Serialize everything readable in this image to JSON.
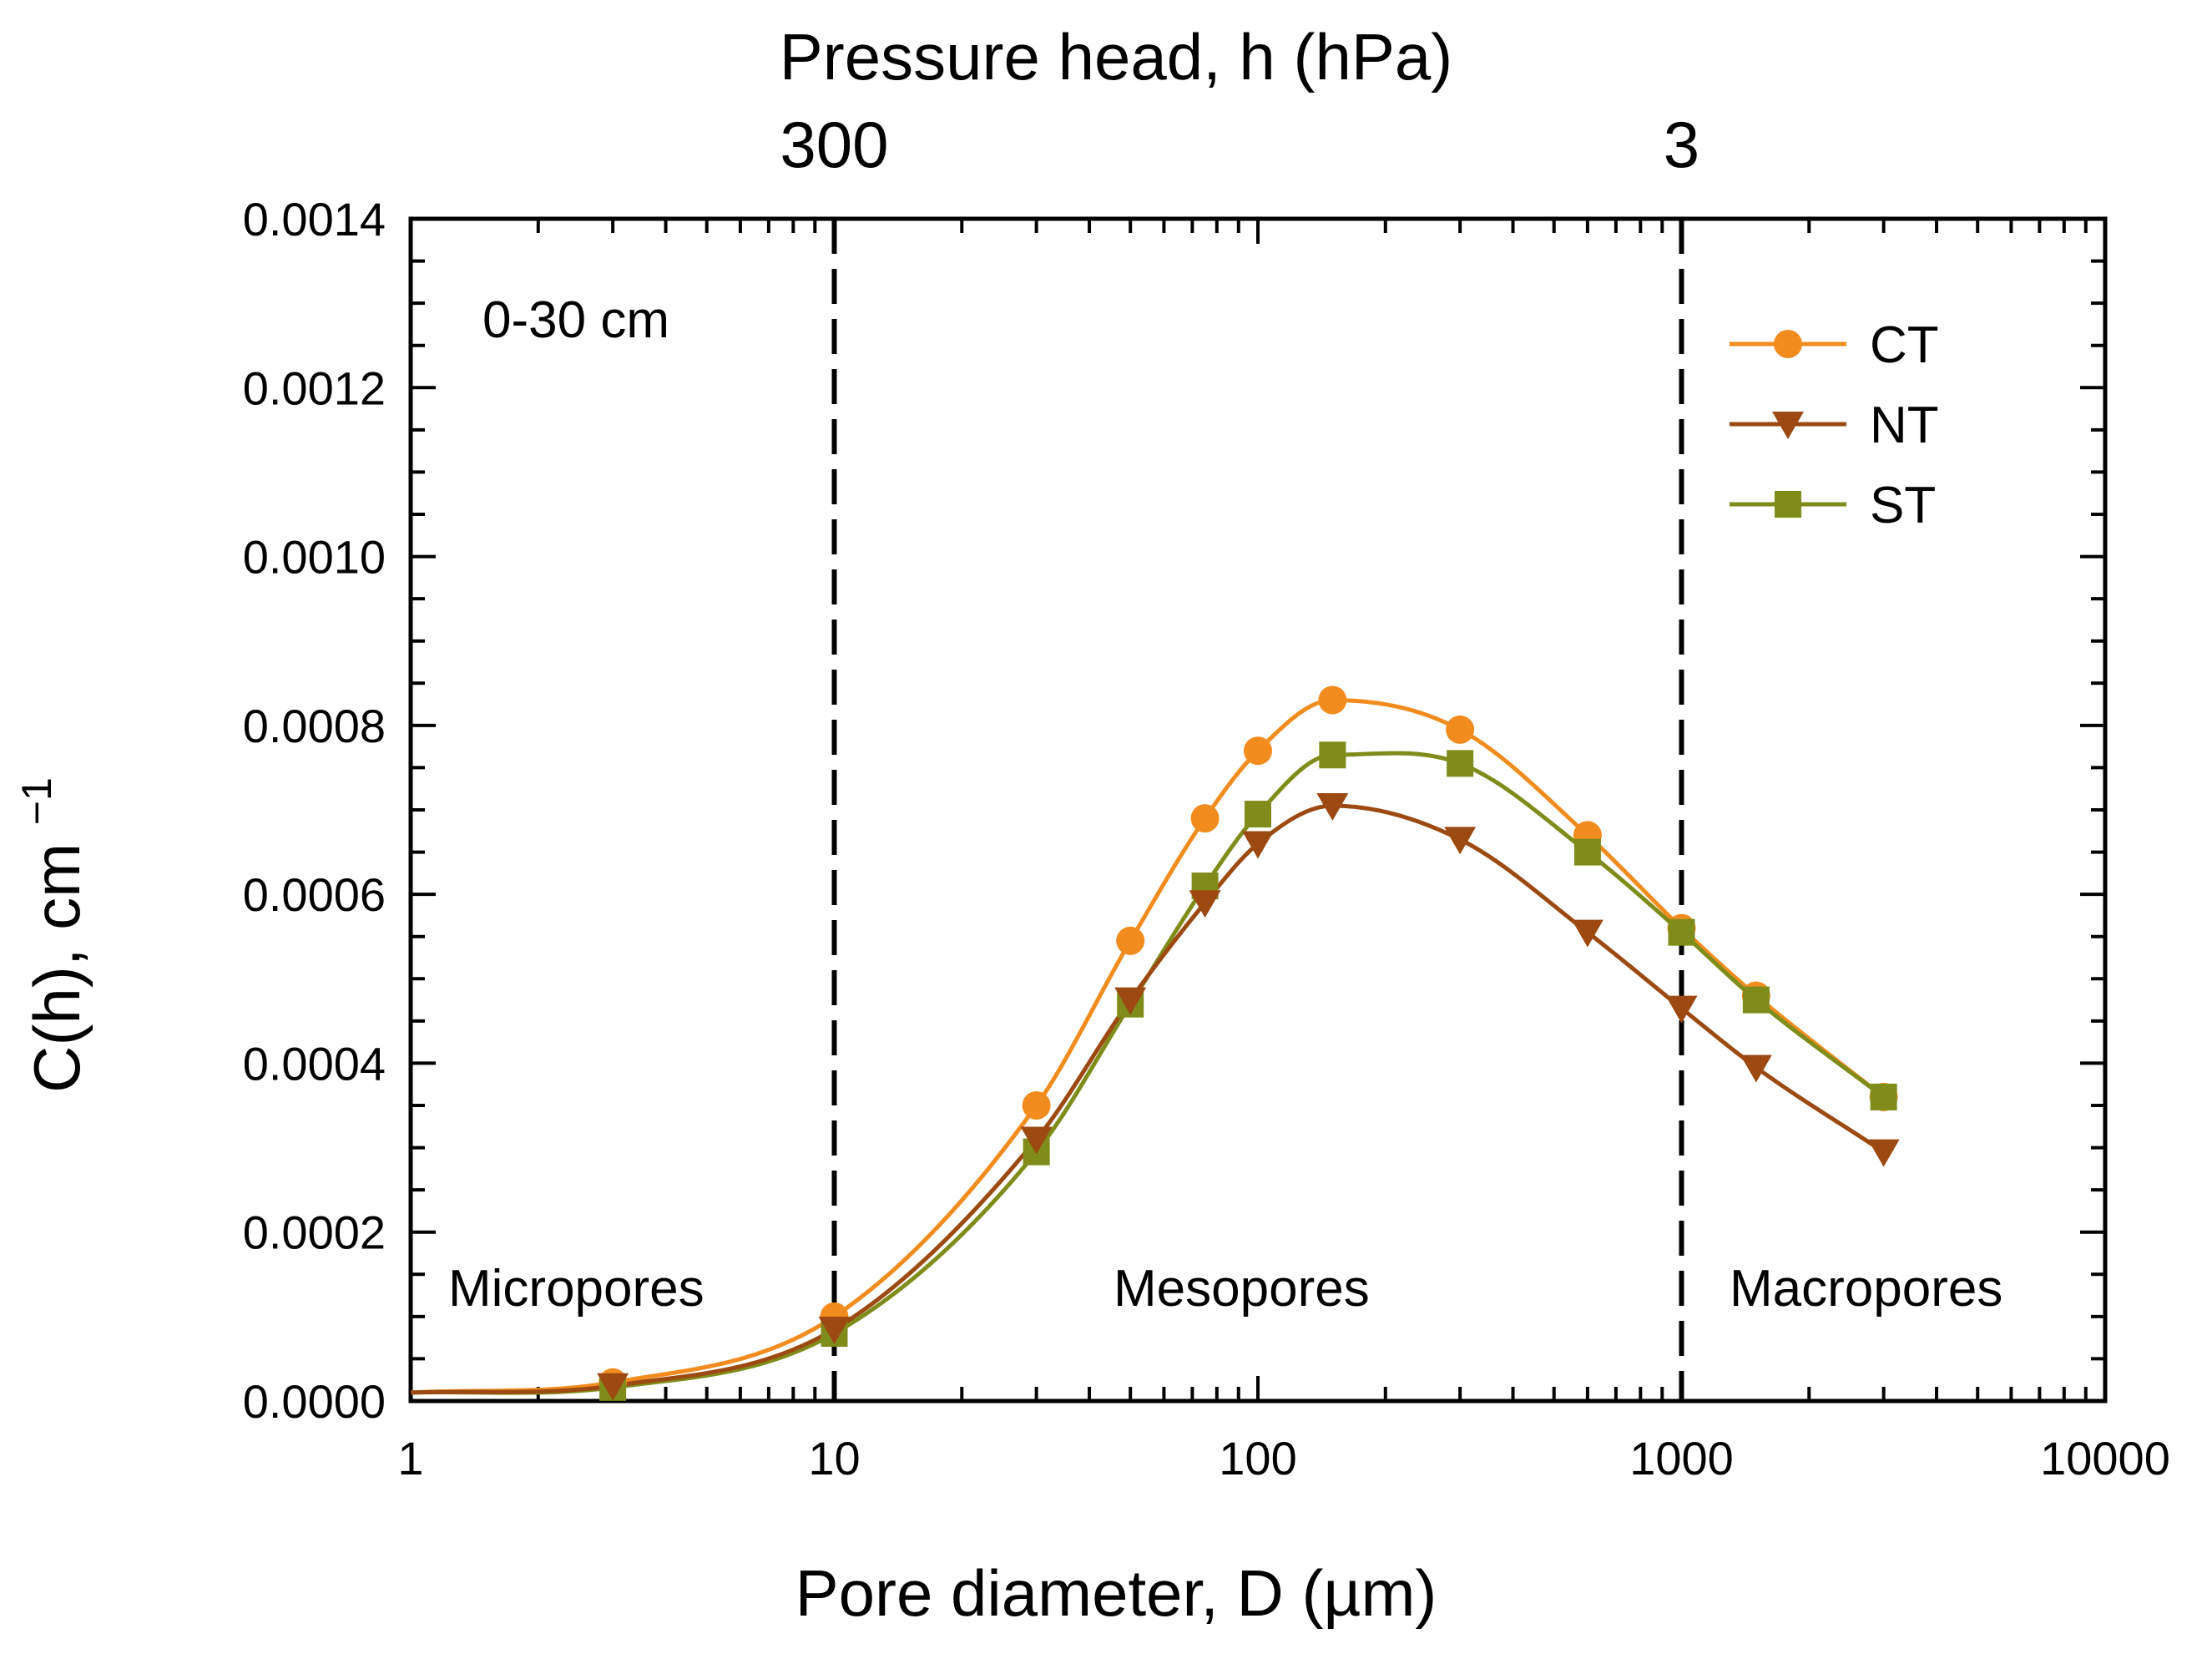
{
  "chart_data": {
    "type": "line",
    "x_scale": "log",
    "xlabel": "Pore diameter, D (µm)",
    "ylabel": "C(h), cm",
    "ylabel_superscript": "−1",
    "top_axis_label": "Pressure head, h (hPa)",
    "top_axis_ticks": [
      {
        "label": "300",
        "x": 10
      },
      {
        "label": "3",
        "x": 1000
      }
    ],
    "xlim": [
      1,
      10000
    ],
    "ylim": [
      0,
      0.0014
    ],
    "x_tick_labels": [
      "1",
      "10",
      "100",
      "1000",
      "10000"
    ],
    "y_tick_labels": [
      "0.0000",
      "0.0002",
      "0.0004",
      "0.0006",
      "0.0008",
      "0.0010",
      "0.0012",
      "0.0014"
    ],
    "annotation": "0-30 cm",
    "regions": [
      {
        "label": "Micropores",
        "boundary_x": 10
      },
      {
        "label": "Mesopores",
        "boundary_x": 1000
      },
      {
        "label": "Macropores"
      }
    ],
    "legend_position": "top-right",
    "grid": false,
    "series": [
      {
        "name": "CT",
        "color": "#F28C1E",
        "marker": "circle",
        "x": [
          1,
          3,
          10,
          30,
          50,
          75,
          100,
          150,
          300,
          600,
          1000,
          1500,
          3000
        ],
        "y": [
          1e-05,
          2.2e-05,
          0.0001,
          0.00035,
          0.000545,
          0.00069,
          0.00077,
          0.00083,
          0.000795,
          0.00067,
          0.00056,
          0.00048,
          0.00036
        ]
      },
      {
        "name": "NT",
        "color": "#9C4A12",
        "marker": "triangle-down",
        "x": [
          1,
          3,
          10,
          30,
          50,
          75,
          100,
          150,
          300,
          600,
          1000,
          1500,
          3000
        ],
        "y": [
          1e-05,
          1.8e-05,
          8.5e-05,
          0.00031,
          0.000475,
          0.00059,
          0.00066,
          0.000705,
          0.000665,
          0.000555,
          0.000465,
          0.000395,
          0.000295
        ]
      },
      {
        "name": "ST",
        "color": "#7F8C1A",
        "marker": "square",
        "x": [
          1,
          3,
          10,
          30,
          50,
          75,
          100,
          150,
          300,
          600,
          1000,
          1500,
          3000
        ],
        "y": [
          1e-05,
          1.6e-05,
          8e-05,
          0.000295,
          0.00047,
          0.00061,
          0.000695,
          0.000765,
          0.000755,
          0.00065,
          0.000555,
          0.000475,
          0.00036
        ]
      }
    ]
  }
}
